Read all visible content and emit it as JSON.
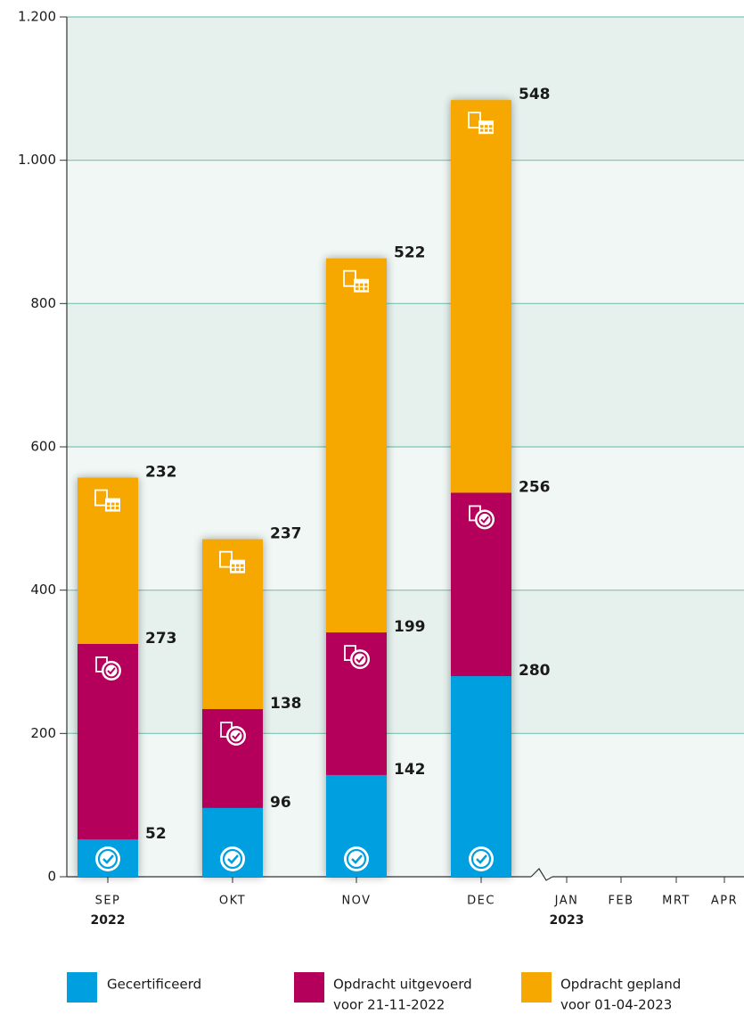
{
  "chart_data": {
    "type": "stacked_bar",
    "categories": [
      "SEP",
      "OKT",
      "NOV",
      "DEC",
      "JAN",
      "FEB",
      "MRT",
      "APR"
    ],
    "years": [
      "2022",
      null,
      null,
      null,
      "2023",
      null,
      null,
      null
    ],
    "series": [
      {
        "name": "Gecertificeerd",
        "color": "#009fe0",
        "values": [
          52,
          96,
          142,
          280,
          null,
          null,
          null,
          null
        ]
      },
      {
        "name": "Opdracht uitgevoerd",
        "note": "voor 21-11-2022",
        "color": "#b5005b",
        "values": [
          273,
          138,
          199,
          256,
          null,
          null,
          null,
          null
        ]
      },
      {
        "name": "Opdracht gepland",
        "note": "voor 01-04-2023",
        "color": "#f6a800",
        "values": [
          232,
          237,
          522,
          548,
          null,
          null,
          null,
          null
        ]
      }
    ],
    "ylim": [
      0,
      1200
    ],
    "yticks": [
      0,
      200,
      400,
      600,
      800,
      {
        "value": 1000,
        "label": "1.000"
      },
      {
        "value": 1200,
        "label": "1.200"
      }
    ],
    "grid": true,
    "grid_color": "#7cc4b4",
    "legend": "bottom"
  }
}
